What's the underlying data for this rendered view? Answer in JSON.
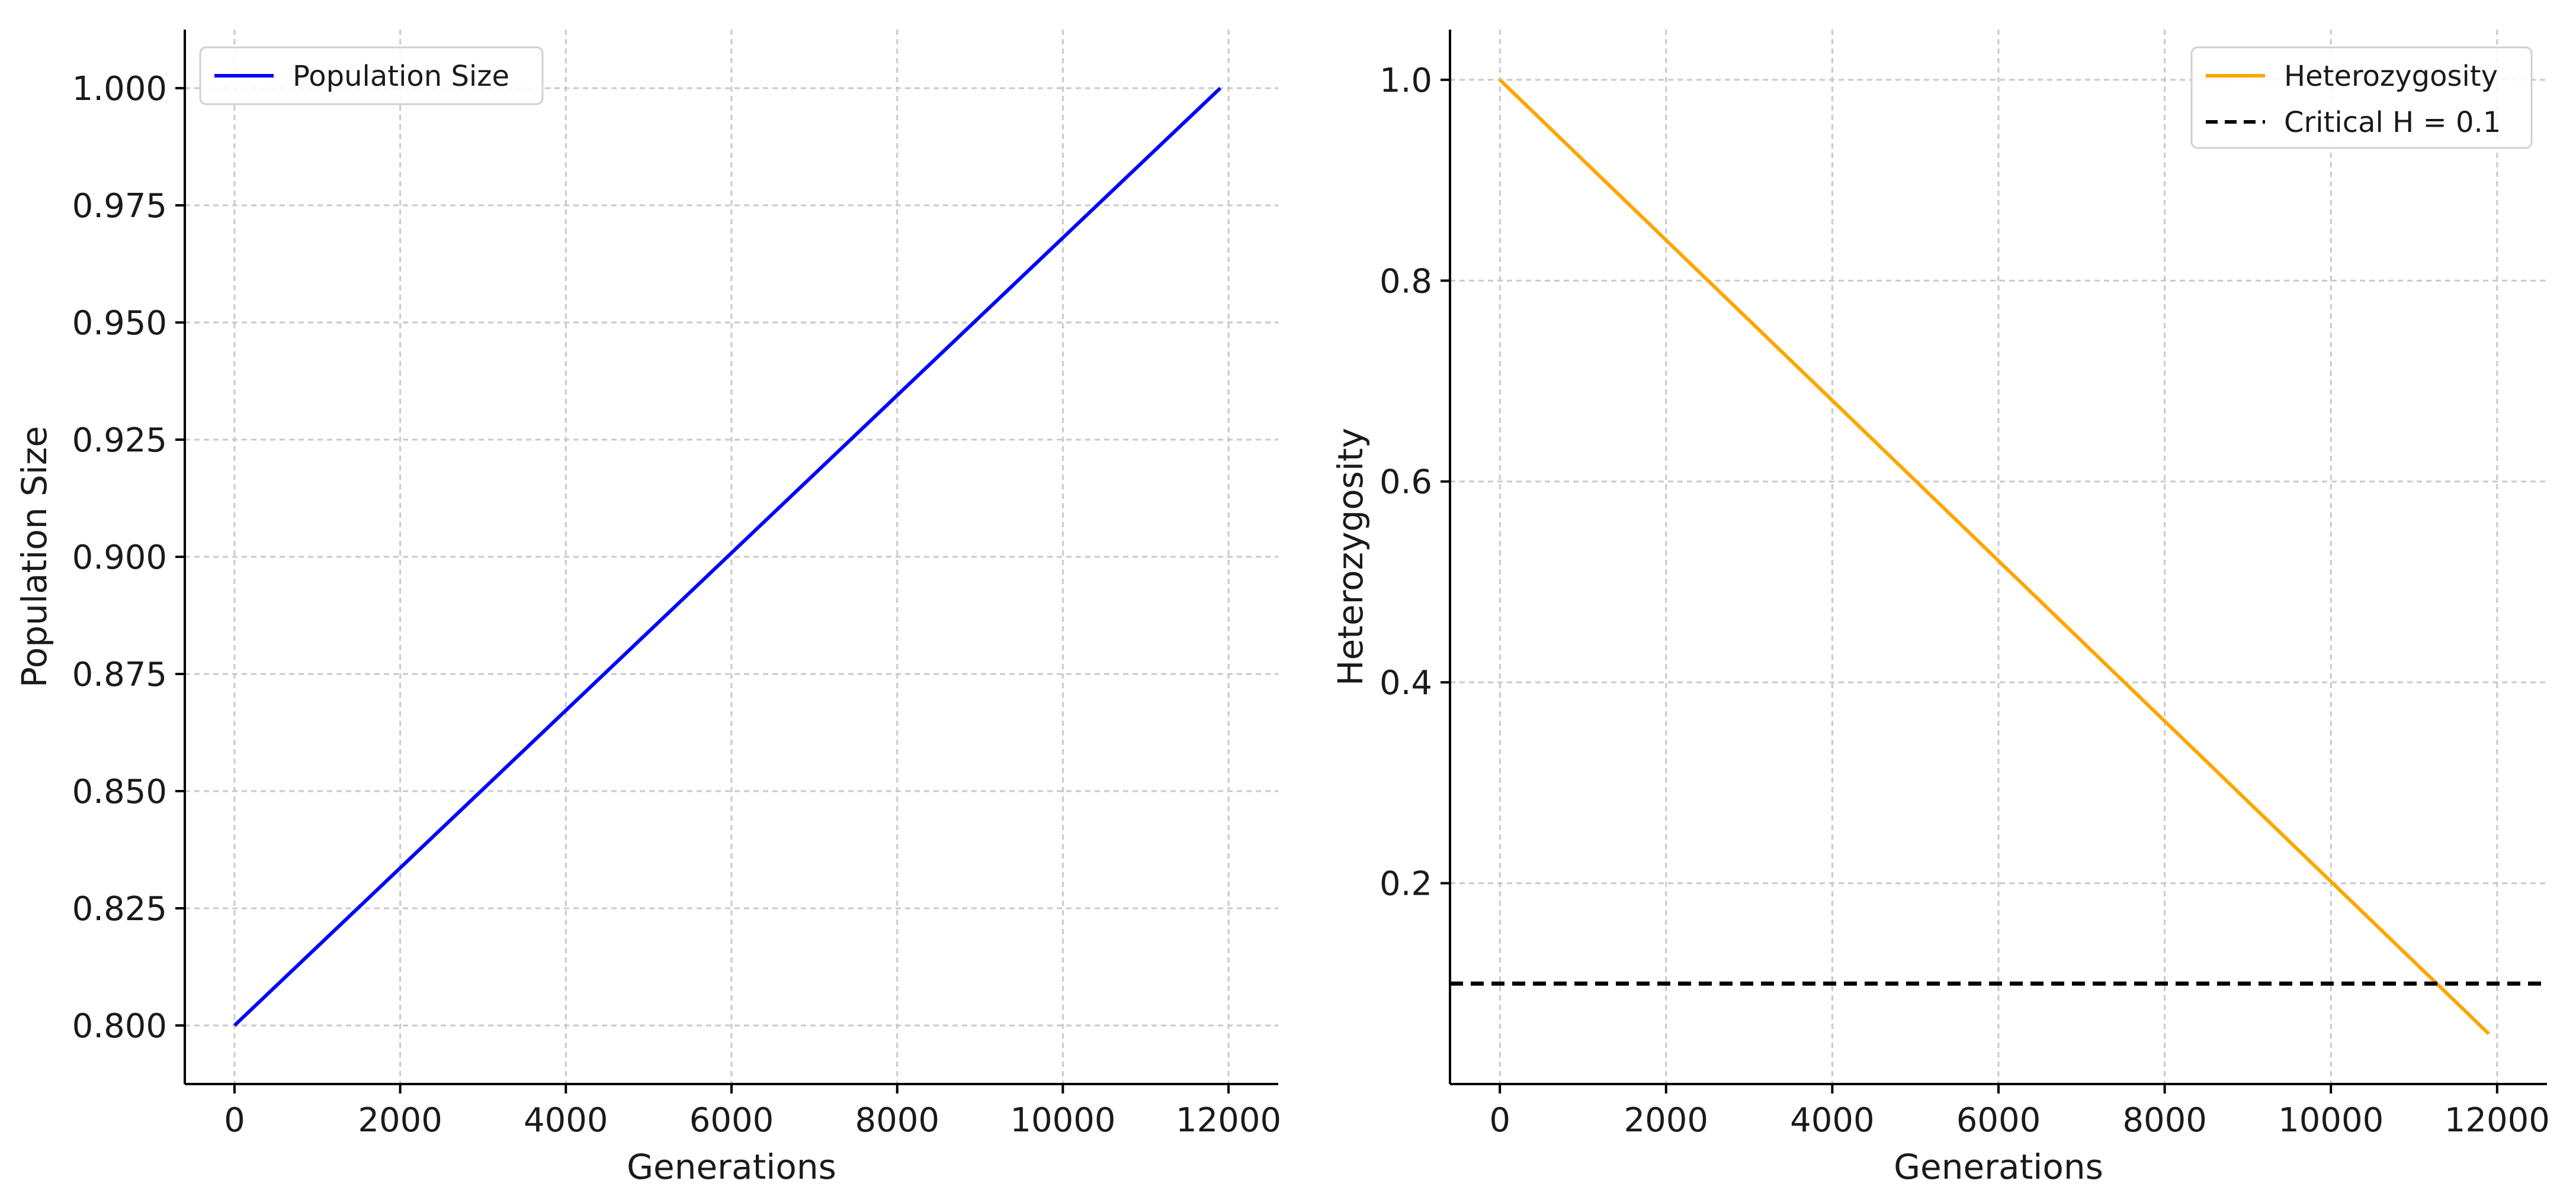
{
  "chart_data": [
    {
      "type": "line",
      "title": "",
      "xlabel": "Generations",
      "ylabel": "Population Size",
      "xlim": [
        -600,
        12600
      ],
      "ylim": [
        0.7875,
        1.0125
      ],
      "xticks": [
        0,
        2000,
        4000,
        6000,
        8000,
        10000,
        12000
      ],
      "xtick_labels": [
        "0",
        "2000",
        "4000",
        "6000",
        "8000",
        "10000",
        "12000"
      ],
      "yticks": [
        0.8,
        0.825,
        0.85,
        0.875,
        0.9,
        0.925,
        0.95,
        0.975,
        1.0
      ],
      "ytick_labels": [
        "0.800",
        "0.825",
        "0.850",
        "0.875",
        "0.900",
        "0.925",
        "0.950",
        "0.975",
        "1.000"
      ],
      "grid": true,
      "legend_position": "top-left",
      "series": [
        {
          "name": "Population Size",
          "color": "#0000ff",
          "style": "solid",
          "x": [
            0,
            11900
          ],
          "y": [
            0.8,
            1.0
          ]
        }
      ]
    },
    {
      "type": "line",
      "title": "",
      "xlabel": "Generations",
      "ylabel": "Heterozygosity",
      "xlim": [
        -600,
        12600
      ],
      "ylim": [
        0.0,
        1.05
      ],
      "xticks": [
        0,
        2000,
        4000,
        6000,
        8000,
        10000,
        12000
      ],
      "xtick_labels": [
        "0",
        "2000",
        "4000",
        "6000",
        "8000",
        "10000",
        "12000"
      ],
      "yticks": [
        0.2,
        0.4,
        0.6,
        0.8,
        1.0
      ],
      "ytick_labels": [
        "0.2",
        "0.4",
        "0.6",
        "0.8",
        "1.0"
      ],
      "grid": true,
      "legend_position": "top-right",
      "series": [
        {
          "name": "Heterozygosity",
          "color": "#ffa500",
          "style": "solid",
          "x": [
            0,
            11900
          ],
          "y": [
            1.0,
            0.05
          ]
        },
        {
          "name": "Critical H = 0.1",
          "color": "#000000",
          "style": "dashed",
          "hline": 0.1
        }
      ]
    }
  ]
}
